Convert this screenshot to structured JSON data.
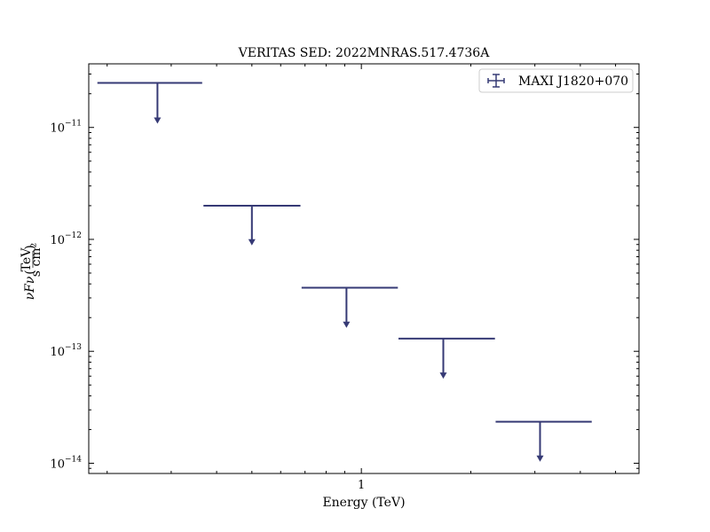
{
  "chart_data": {
    "type": "scatter",
    "title": "VERITAS SED: 2022MNRAS.517.4736A",
    "xlabel": "Energy (TeV)",
    "ylabel": "νFν (TeV / s cm²)",
    "ylabel_main": "νFν",
    "ylabel_unit_num": "TeV",
    "ylabel_unit_den": "s cm²",
    "x_scale": "log",
    "y_scale": "log",
    "xlim": [
      0.178,
      5.8
    ],
    "ylim": [
      8.1e-15,
      3.7e-11
    ],
    "x_ticks": [
      {
        "value": 1,
        "label": "1"
      }
    ],
    "y_ticks": [
      {
        "value": 1e-14,
        "base": "10",
        "exp": "−14"
      },
      {
        "value": 1e-13,
        "base": "10",
        "exp": "−13"
      },
      {
        "value": 1e-12,
        "base": "10",
        "exp": "−12"
      },
      {
        "value": 1e-11,
        "base": "10",
        "exp": "−11"
      }
    ],
    "grid": false,
    "legend_position": "top-right",
    "series": [
      {
        "name": "MAXI J1820+070",
        "color": "#363a75",
        "upper_limits": true,
        "points": [
          {
            "x": 0.275,
            "x_low": 0.188,
            "x_high": 0.365,
            "y": 2.5e-11,
            "y_arrow": 1.1e-11
          },
          {
            "x": 0.5,
            "x_low": 0.368,
            "x_high": 0.68,
            "y": 2e-12,
            "y_arrow": 9e-13
          },
          {
            "x": 0.91,
            "x_low": 0.685,
            "x_high": 1.26,
            "y": 3.7e-13,
            "y_arrow": 1.65e-13
          },
          {
            "x": 1.68,
            "x_low": 1.265,
            "x_high": 2.33,
            "y": 1.3e-13,
            "y_arrow": 5.8e-14
          },
          {
            "x": 3.1,
            "x_low": 2.34,
            "x_high": 4.3,
            "y": 2.35e-14,
            "y_arrow": 1.05e-14
          }
        ]
      }
    ]
  }
}
